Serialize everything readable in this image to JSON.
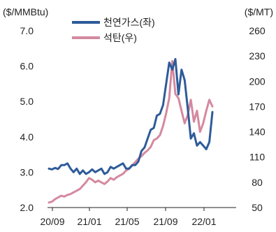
{
  "chart_data": {
    "type": "line",
    "left_axis_label": "($/MMBtu)",
    "right_axis_label": "($/MT)",
    "left_ylim": [
      2.0,
      7.0
    ],
    "left_ticks": [
      "7.0",
      "6.0",
      "5.0",
      "4.0",
      "3.0",
      "2.0"
    ],
    "right_ylim": [
      50,
      260
    ],
    "right_ticks": [
      "260",
      "230",
      "200",
      "170",
      "140",
      "110",
      "80",
      "50"
    ],
    "x_ticks": [
      "20/09",
      "21/01",
      "21/05",
      "21/09",
      "22/01"
    ],
    "legend_placement": "top-center",
    "series": [
      {
        "name": "천연가스(좌)",
        "axis": "left",
        "color": "#2e5b9a",
        "values": [
          3.1,
          3.08,
          3.12,
          3.09,
          3.2,
          3.2,
          3.25,
          3.1,
          3.0,
          3.1,
          2.95,
          3.05,
          2.95,
          3.0,
          3.08,
          3.0,
          3.05,
          3.1,
          2.95,
          3.0,
          3.15,
          3.1,
          3.15,
          3.2,
          3.25,
          3.1,
          3.1,
          3.2,
          3.2,
          3.3,
          3.6,
          3.7,
          3.95,
          4.2,
          4.25,
          4.6,
          4.65,
          4.9,
          5.5,
          6.1,
          5.9,
          6.2,
          5.2,
          5.9,
          5.6,
          4.8,
          3.95,
          4.1,
          3.75,
          3.85,
          3.75,
          3.65,
          3.85,
          4.7
        ]
      },
      {
        "name": "석탄(우)",
        "axis": "right",
        "color": "#d4899f",
        "values": [
          56,
          57,
          60,
          62,
          64,
          63,
          65,
          66,
          68,
          70,
          72,
          76,
          80,
          85,
          83,
          80,
          82,
          80,
          78,
          81,
          85,
          83,
          86,
          88,
          90,
          94,
          96,
          100,
          104,
          108,
          111,
          115,
          118,
          122,
          130,
          132,
          136,
          147,
          162,
          180,
          224,
          185,
          180,
          165,
          150,
          160,
          178,
          152,
          165,
          140,
          150,
          165,
          178,
          170
        ]
      }
    ]
  }
}
